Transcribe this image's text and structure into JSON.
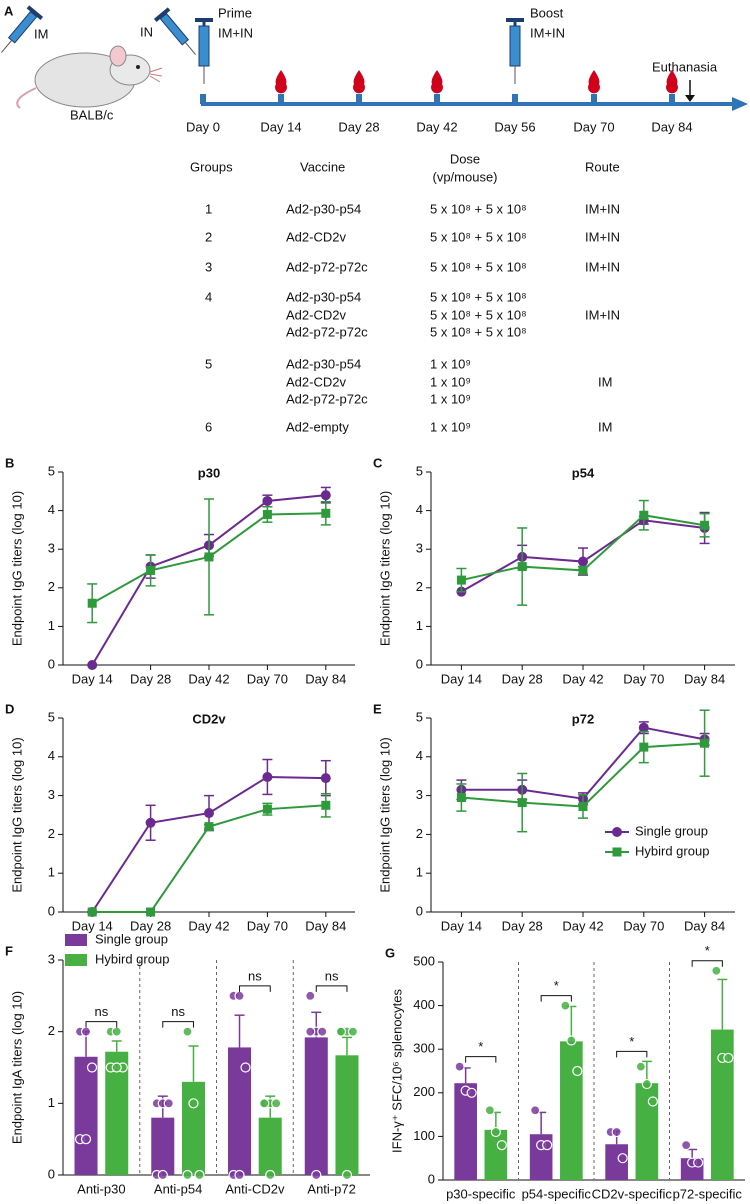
{
  "panel_a": {
    "panel": "A",
    "mouse": {
      "label": "BALB/c",
      "left_route": "IM",
      "right_route": "IN"
    },
    "prime": {
      "label": "Prime",
      "route": "IM+IN"
    },
    "boost": {
      "label": "Boost",
      "route": "IM+IN"
    },
    "euthanasia": "Euthanasia",
    "days": [
      "Day 0",
      "Day 14",
      "Day 28",
      "Day 42",
      "Day 56",
      "Day 70",
      "Day 84"
    ],
    "table": {
      "headers": {
        "group": "Groups",
        "vaccine": "Vaccine",
        "dose": [
          "Dose",
          "(vp/mouse)"
        ],
        "route": "Route"
      },
      "rows": [
        {
          "group": "1",
          "vaccines": [
            "Ad2-p30-p54"
          ],
          "doses": [
            "5 x 10⁸ + 5 x 10⁸"
          ],
          "route": "IM+IN"
        },
        {
          "group": "2",
          "vaccines": [
            "Ad2-CD2v"
          ],
          "doses": [
            "5 x 10⁸ + 5 x 10⁸"
          ],
          "route": "IM+IN"
        },
        {
          "group": "3",
          "vaccines": [
            "Ad2-p72-p72c"
          ],
          "doses": [
            "5 x 10⁸ + 5 x 10⁸"
          ],
          "route": "IM+IN"
        },
        {
          "group": "4",
          "vaccines": [
            "Ad2-p30-p54",
            "Ad2-CD2v",
            "Ad2-p72-p72c"
          ],
          "doses": [
            "5 x 10⁸ + 5 x 10⁸",
            "5 x 10⁸ + 5 x 10⁸",
            "5 x 10⁸ + 5 x 10⁸"
          ],
          "route": "IM+IN"
        },
        {
          "group": "5",
          "vaccines": [
            "Ad2-p30-p54",
            "Ad2-CD2v",
            "Ad2-p72-p72c"
          ],
          "doses": [
            "1 x 10⁹",
            "1 x 10⁹",
            "1 x 10⁹"
          ],
          "route": "IM"
        },
        {
          "group": "6",
          "vaccines": [
            "Ad2-empty"
          ],
          "doses": [
            "1 x 10⁹"
          ],
          "route": "IM"
        }
      ]
    }
  },
  "chart_data": [
    {
      "type": "line",
      "panel": "B",
      "title": "p30",
      "y_label": "Endpoint IgG titers (log 10)",
      "categories": [
        "Day 14",
        "Day 28",
        "Day 42",
        "Day 70",
        "Day 84"
      ],
      "series": [
        {
          "name": "Single group",
          "color": "#6b2a8f",
          "marker": "circle",
          "values": [
            0,
            2.55,
            3.1,
            4.25,
            4.4
          ],
          "errors": [
            0,
            0.3,
            0.28,
            0.15,
            0.2
          ]
        },
        {
          "name": "Hybird group",
          "color": "#2f9a3c",
          "marker": "square",
          "values": [
            1.6,
            2.45,
            2.8,
            3.9,
            3.93
          ],
          "errors": [
            0.5,
            0.4,
            1.5,
            0.2,
            0.3
          ]
        }
      ],
      "ylim": [
        0,
        5
      ],
      "yticks": [
        0,
        1,
        2,
        3,
        4,
        5
      ]
    },
    {
      "type": "line",
      "panel": "C",
      "title": "p54",
      "y_label": "Endpoint IgG titers (log 10)",
      "categories": [
        "Day 14",
        "Day 28",
        "Day 42",
        "Day 70",
        "Day 84"
      ],
      "series": [
        {
          "name": "Single group",
          "color": "#6b2a8f",
          "marker": "circle",
          "values": [
            1.9,
            2.8,
            2.68,
            3.75,
            3.55
          ],
          "errors": [
            0,
            0.3,
            0.35,
            0.1,
            0.4
          ]
        },
        {
          "name": "Hybird group",
          "color": "#2f9a3c",
          "marker": "square",
          "values": [
            2.2,
            2.55,
            2.45,
            3.88,
            3.62
          ],
          "errors": [
            0.3,
            1.0,
            0.1,
            0.38,
            0.3
          ]
        }
      ],
      "ylim": [
        0,
        5
      ],
      "yticks": [
        0,
        1,
        2,
        3,
        4,
        5
      ]
    },
    {
      "type": "line",
      "panel": "D",
      "title": "CD2v",
      "y_label": "Endpoint IgG titers (log 10)",
      "categories": [
        "Day 14",
        "Day 28",
        "Day 42",
        "Day 70",
        "Day 84"
      ],
      "series": [
        {
          "name": "Single group",
          "color": "#6b2a8f",
          "marker": "circle",
          "values": [
            0,
            2.3,
            2.55,
            3.48,
            3.45
          ],
          "errors": [
            0,
            0.45,
            0.45,
            0.45,
            0.45
          ]
        },
        {
          "name": "Hybird group",
          "color": "#2f9a3c",
          "marker": "square",
          "values": [
            0,
            0,
            2.2,
            2.65,
            2.75
          ],
          "errors": [
            0,
            0,
            0.05,
            0.15,
            0.3
          ]
        }
      ],
      "ylim": [
        0,
        5
      ],
      "yticks": [
        0,
        1,
        2,
        3,
        4,
        5
      ]
    },
    {
      "type": "line",
      "panel": "E",
      "title": "p72",
      "y_label": "Endpoint IgG titers (log 10)",
      "categories": [
        "Day 14",
        "Day 28",
        "Day 42",
        "Day 70",
        "Day 84"
      ],
      "series": [
        {
          "name": "Single group",
          "color": "#6b2a8f",
          "marker": "circle",
          "values": [
            3.15,
            3.15,
            2.92,
            4.75,
            4.45
          ],
          "errors": [
            0.25,
            0.25,
            0.15,
            0.15,
            0.15
          ]
        },
        {
          "name": "Hybird group",
          "color": "#2f9a3c",
          "marker": "square",
          "values": [
            2.95,
            2.82,
            2.72,
            4.25,
            4.35
          ],
          "errors": [
            0.35,
            0.75,
            0.3,
            0.4,
            0.85
          ]
        }
      ],
      "ylim": [
        0,
        5
      ],
      "yticks": [
        0,
        1,
        2,
        3,
        4,
        5
      ],
      "legend": "lower right"
    },
    {
      "type": "bar",
      "panel": "F",
      "y_label": "Endpoint IgA titers (log 10)",
      "categories": [
        "Anti-p30",
        "Anti-p54",
        "Anti-CD2v",
        "Anti-p72"
      ],
      "series": [
        {
          "name": "Single group",
          "color": "#7a3a9c",
          "values": [
            1.65,
            0.8,
            1.78,
            1.92
          ],
          "errors": [
            0.35,
            0.3,
            0.45,
            0.35
          ],
          "points": [
            [
              2,
              2,
              1.5,
              0.5,
              0.5
            ],
            [
              1,
              1,
              1,
              0,
              0
            ],
            [
              2.5,
              2.5,
              1.5,
              0,
              0
            ],
            [
              2.5,
              2,
              2,
              2,
              0
            ]
          ]
        },
        {
          "name": "Hybird group",
          "color": "#47b043",
          "values": [
            1.72,
            1.3,
            0.8,
            1.67
          ],
          "errors": [
            0.15,
            0.5,
            0.3,
            0.25
          ],
          "points": [
            [
              2,
              2,
              1.5,
              1.5,
              1.5
            ],
            [
              2,
              1,
              0,
              0
            ],
            [
              1,
              1,
              1,
              1,
              0
            ],
            [
              2,
              2,
              2,
              2,
              0
            ]
          ]
        }
      ],
      "comparisons": [
        "ns",
        "ns",
        "ns",
        "ns"
      ],
      "ylim": [
        0,
        3
      ],
      "yticks": [
        0,
        1,
        2,
        3
      ],
      "legend": "upper left"
    },
    {
      "type": "bar",
      "panel": "G",
      "y_label": "IFN-γ⁺ SFC/10⁶ splenocytes",
      "categories": [
        "p30-specific",
        "p54-specific",
        "CD2v-specific",
        "p72-specific"
      ],
      "series": [
        {
          "name": "Single group",
          "color": "#7a3a9c",
          "values": [
            222,
            105,
            82,
            50
          ],
          "errors": [
            35,
            50,
            30,
            20
          ],
          "points": [
            [
              260,
              205,
              200
            ],
            [
              160,
              80,
              80
            ],
            [
              110,
              110,
              50
            ],
            [
              80,
              40,
              40
            ]
          ]
        },
        {
          "name": "Hybird group",
          "color": "#47b043",
          "values": [
            115,
            318,
            222,
            345
          ],
          "errors": [
            40,
            80,
            50,
            115
          ],
          "points": [
            [
              160,
              110,
              80
            ],
            [
              400,
              320,
              250
            ],
            [
              260,
              220,
              180
            ],
            [
              480,
              280,
              280
            ]
          ]
        }
      ],
      "comparisons": [
        "*",
        "*",
        "*",
        "*"
      ],
      "ylim": [
        0,
        500
      ],
      "yticks": [
        0,
        100,
        200,
        300,
        400,
        500
      ]
    }
  ]
}
